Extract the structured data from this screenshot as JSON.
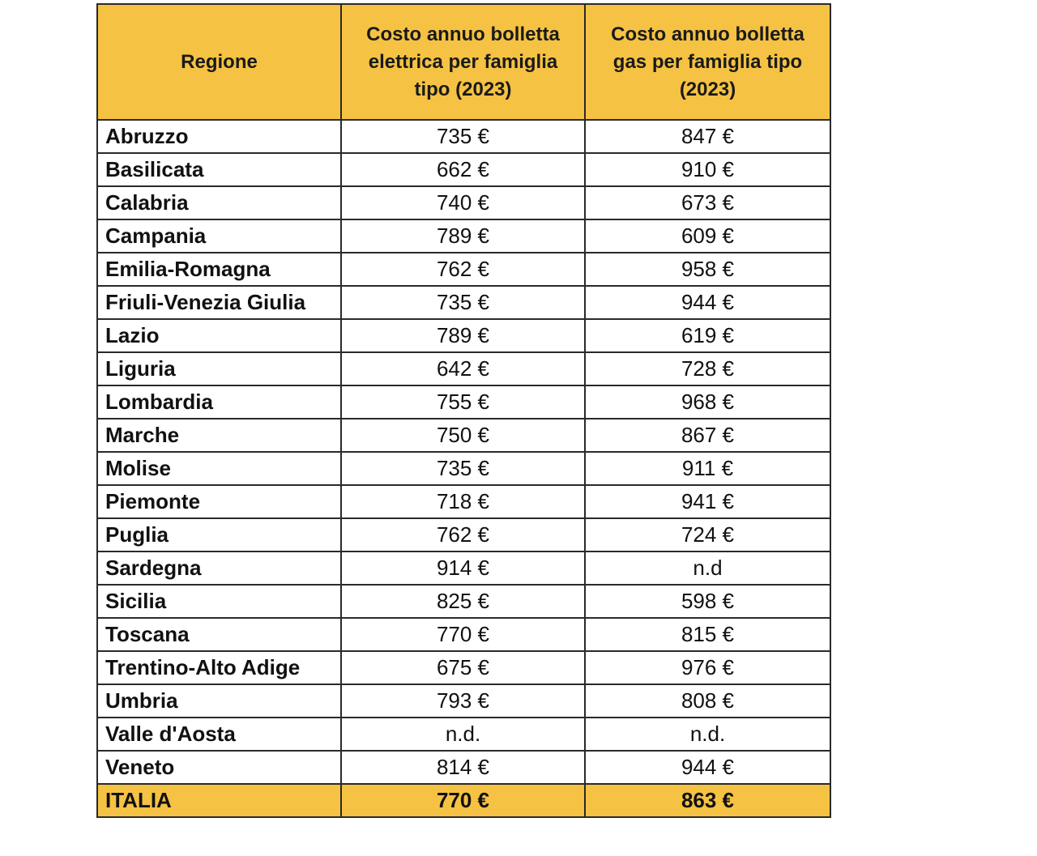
{
  "table": {
    "headers": {
      "region": "Regione",
      "electric_lines": [
        "Costo annuo bolletta",
        "elettrica per famiglia",
        "tipo (2023)"
      ],
      "gas_lines": [
        "Costo annuo bolletta",
        "gas per famiglia tipo",
        "(2023)"
      ]
    },
    "rows": [
      {
        "region": "Abruzzo",
        "electric": "735 €",
        "gas": "847 €"
      },
      {
        "region": "Basilicata",
        "electric": "662 €",
        "gas": "910 €"
      },
      {
        "region": "Calabria",
        "electric": "740 €",
        "gas": "673 €"
      },
      {
        "region": "Campania",
        "electric": "789 €",
        "gas": "609 €"
      },
      {
        "region": "Emilia-Romagna",
        "electric": "762 €",
        "gas": "958 €"
      },
      {
        "region": "Friuli-Venezia Giulia",
        "electric": "735 €",
        "gas": "944 €"
      },
      {
        "region": "Lazio",
        "electric": "789 €",
        "gas": "619 €"
      },
      {
        "region": "Liguria",
        "electric": "642 €",
        "gas": "728 €"
      },
      {
        "region": "Lombardia",
        "electric": "755 €",
        "gas": "968 €"
      },
      {
        "region": "Marche",
        "electric": "750 €",
        "gas": "867 €"
      },
      {
        "region": "Molise",
        "electric": "735 €",
        "gas": "911 €"
      },
      {
        "region": "Piemonte",
        "electric": "718 €",
        "gas": "941 €"
      },
      {
        "region": "Puglia",
        "electric": "762 €",
        "gas": "724 €"
      },
      {
        "region": "Sardegna",
        "electric": "914 €",
        "gas": "n.d"
      },
      {
        "region": "Sicilia",
        "electric": "825 €",
        "gas": "598 €"
      },
      {
        "region": "Toscana",
        "electric": "770 €",
        "gas": "815 €"
      },
      {
        "region": "Trentino-Alto Adige",
        "electric": "675 €",
        "gas": "976 €"
      },
      {
        "region": "Umbria",
        "electric": "793 €",
        "gas": "808 €"
      },
      {
        "region": "Valle d'Aosta",
        "electric": "n.d.",
        "gas": "n.d."
      },
      {
        "region": "Veneto",
        "electric": "814 €",
        "gas": "944 €"
      }
    ],
    "total": {
      "region": "ITALIA",
      "electric": "770 €",
      "gas": "863 €"
    }
  },
  "colors": {
    "header_fill": "#f5c243",
    "border": "#2a2a2a"
  }
}
